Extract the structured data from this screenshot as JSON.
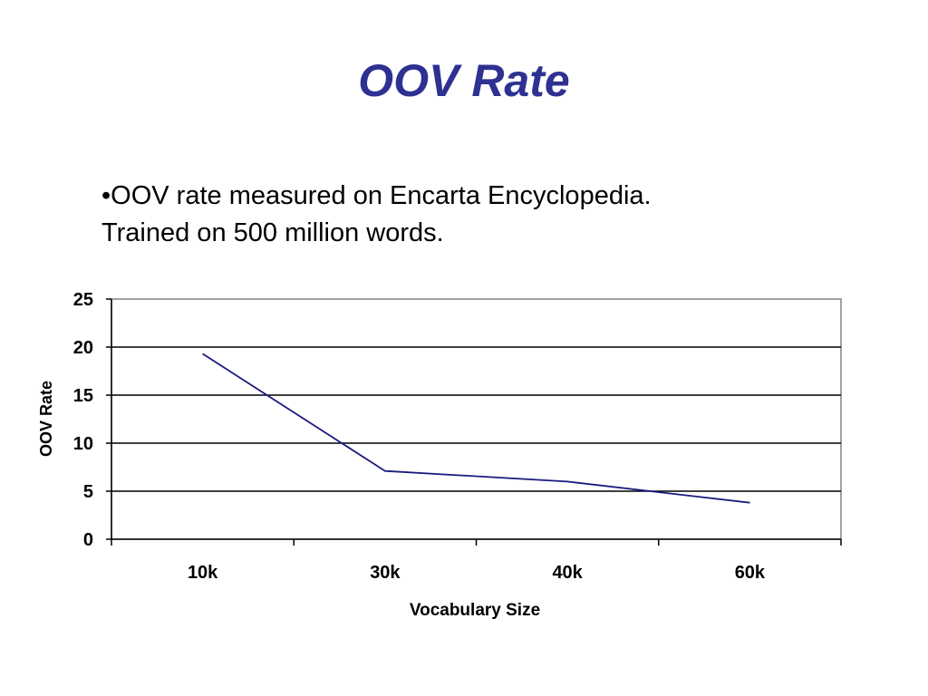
{
  "slide": {
    "title": "OOV Rate",
    "bullet_lines": [
      "•OOV rate measured on Encarta Encyclopedia.",
      "Trained on 500 million words."
    ]
  },
  "colors": {
    "title": "#2e3192",
    "series_line": "#1a1a80",
    "gridline": "#000000",
    "plot_border": "#808080"
  },
  "chart_data": {
    "type": "line",
    "categories": [
      "10k",
      "30k",
      "40k",
      "60k"
    ],
    "series": [
      {
        "values": [
          19.3,
          7.1,
          6.0,
          3.8
        ]
      }
    ],
    "xlabel": "Vocabulary Size",
    "ylabel": "OOV Rate",
    "ylim": [
      0,
      25
    ],
    "yticks": [
      0,
      5,
      10,
      15,
      20,
      25
    ],
    "grid": true,
    "legend": "none"
  }
}
